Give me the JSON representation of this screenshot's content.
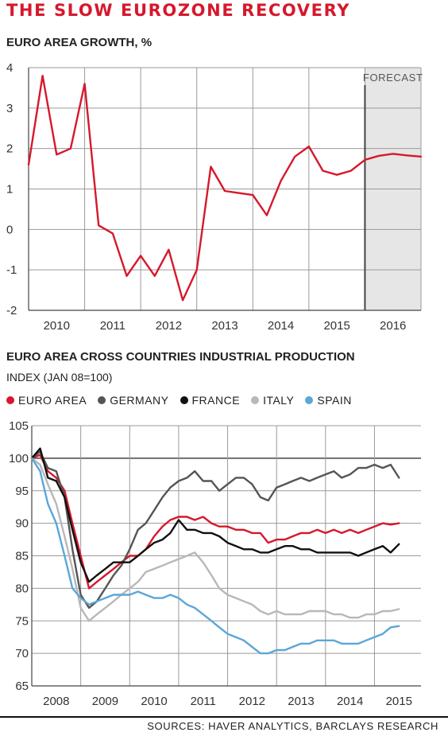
{
  "title": "THE SLOW EUROZONE RECOVERY",
  "source": "SOURCES: HAVER ANALYTICS, BARCLAYS RESEARCH",
  "chart_data": [
    {
      "type": "line",
      "title": "EURO AREA GROWTH, %",
      "xlabel": "",
      "ylabel": "",
      "xlim": [
        2009.5,
        2016.5
      ],
      "ylim": [
        -2,
        4
      ],
      "yticks": [
        4,
        3,
        2,
        1,
        0,
        -1,
        -2
      ],
      "xtick_labels": [
        "2010",
        "2011",
        "2012",
        "2013",
        "2014",
        "2015",
        "2016"
      ],
      "annotation": "FORECAST",
      "forecast_start": 2015.5,
      "grid": true,
      "series": [
        {
          "color": "#d6182c",
          "x": [
            2009.5,
            2009.75,
            2010.0,
            2010.25,
            2010.5,
            2010.75,
            2011.0,
            2011.25,
            2011.5,
            2011.75,
            2012.0,
            2012.25,
            2012.5,
            2012.75,
            2013.0,
            2013.25,
            2013.5,
            2013.75,
            2014.0,
            2014.25,
            2014.5,
            2014.75,
            2015.0,
            2015.25,
            2015.5,
            2015.75,
            2016.0,
            2016.25,
            2016.5
          ],
          "y": [
            1.6,
            3.8,
            1.85,
            2.0,
            3.6,
            0.1,
            -0.1,
            -1.15,
            -0.65,
            -1.15,
            -0.5,
            -1.75,
            -1.0,
            1.55,
            0.95,
            0.9,
            0.85,
            0.35,
            1.2,
            1.8,
            2.05,
            1.45,
            1.35,
            1.45,
            1.72,
            1.82,
            1.87,
            1.83,
            1.8
          ]
        }
      ]
    },
    {
      "type": "line",
      "title": "EURO AREA CROSS COUNTRIES INDUSTRIAL PRODUCTION",
      "subtitle": "INDEX (JAN 08=100)",
      "xlabel": "",
      "ylabel": "",
      "xlim": [
        2008.0,
        2015.95
      ],
      "ylim": [
        65,
        105
      ],
      "yticks": [
        105,
        100,
        95,
        90,
        85,
        80,
        75,
        70,
        65
      ],
      "xtick_labels": [
        "2008",
        "2009",
        "2010",
        "2011",
        "2012",
        "2013",
        "2014",
        "2015"
      ],
      "legend_position": "top-left",
      "grid": true,
      "series": [
        {
          "name": "EURO AREA",
          "color": "#d6182c",
          "x": [
            2008.0,
            2008.17,
            2008.33,
            2008.5,
            2008.67,
            2008.83,
            2009.0,
            2009.17,
            2009.33,
            2009.5,
            2009.67,
            2009.83,
            2010.0,
            2010.17,
            2010.33,
            2010.5,
            2010.67,
            2010.83,
            2011.0,
            2011.17,
            2011.33,
            2011.5,
            2011.67,
            2011.83,
            2012.0,
            2012.17,
            2012.33,
            2012.5,
            2012.67,
            2012.83,
            2013.0,
            2013.17,
            2013.33,
            2013.5,
            2013.67,
            2013.83,
            2014.0,
            2014.17,
            2014.33,
            2014.5,
            2014.67,
            2014.83,
            2015.0,
            2015.17,
            2015.33,
            2015.5
          ],
          "y": [
            100,
            100.5,
            98,
            97,
            95,
            90,
            85,
            80,
            81,
            82,
            83,
            84,
            85,
            85,
            86,
            88,
            89.5,
            90.5,
            91,
            91,
            90.5,
            91,
            90,
            89.5,
            89.5,
            89,
            89,
            88.5,
            88.5,
            87,
            87.5,
            87.5,
            88,
            88.5,
            88.5,
            89,
            88.5,
            89,
            88.5,
            89,
            88.5,
            89,
            89.5,
            90,
            89.8,
            90
          ]
        },
        {
          "name": "GERMANY",
          "color": "#555555",
          "x": [
            2008.0,
            2008.17,
            2008.33,
            2008.5,
            2008.67,
            2008.83,
            2009.0,
            2009.17,
            2009.33,
            2009.5,
            2009.67,
            2009.83,
            2010.0,
            2010.17,
            2010.33,
            2010.5,
            2010.67,
            2010.83,
            2011.0,
            2011.17,
            2011.33,
            2011.5,
            2011.67,
            2011.83,
            2012.0,
            2012.17,
            2012.33,
            2012.5,
            2012.67,
            2012.83,
            2013.0,
            2013.17,
            2013.33,
            2013.5,
            2013.67,
            2013.83,
            2014.0,
            2014.17,
            2014.33,
            2014.5,
            2014.67,
            2014.83,
            2015.0,
            2015.17,
            2015.33,
            2015.5
          ],
          "y": [
            100,
            101,
            98.5,
            98,
            94,
            86,
            79,
            77,
            78,
            80,
            82,
            83.5,
            86,
            89,
            90,
            92,
            94,
            95.5,
            96.5,
            97,
            98,
            96.5,
            96.5,
            95,
            96,
            97,
            97,
            96,
            94,
            93.5,
            95.5,
            96,
            96.5,
            97,
            96.5,
            97,
            97.5,
            98,
            97,
            97.5,
            98.5,
            98.5,
            99,
            98.5,
            99,
            97
          ]
        },
        {
          "name": "FRANCE",
          "color": "#111111",
          "x": [
            2008.0,
            2008.17,
            2008.33,
            2008.5,
            2008.67,
            2008.83,
            2009.0,
            2009.17,
            2009.33,
            2009.5,
            2009.67,
            2009.83,
            2010.0,
            2010.17,
            2010.33,
            2010.5,
            2010.67,
            2010.83,
            2011.0,
            2011.17,
            2011.33,
            2011.5,
            2011.67,
            2011.83,
            2012.0,
            2012.17,
            2012.33,
            2012.5,
            2012.67,
            2012.83,
            2013.0,
            2013.17,
            2013.33,
            2013.5,
            2013.67,
            2013.83,
            2014.0,
            2014.17,
            2014.33,
            2014.5,
            2014.67,
            2014.83,
            2015.0,
            2015.17,
            2015.33,
            2015.5
          ],
          "y": [
            100,
            101.5,
            97,
            96.5,
            94,
            89,
            84,
            81,
            82,
            83,
            84,
            84,
            84,
            85,
            86,
            87,
            87.5,
            88.5,
            90.5,
            89,
            89,
            88.5,
            88.5,
            88,
            87,
            86.5,
            86,
            86,
            85.5,
            85.5,
            86,
            86.5,
            86.5,
            86,
            86,
            85.5,
            85.5,
            85.5,
            85.5,
            85.5,
            85,
            85.5,
            86,
            86.5,
            85.5,
            86.8
          ]
        },
        {
          "name": "ITALY",
          "color": "#b8b8b8",
          "x": [
            2008.0,
            2008.17,
            2008.33,
            2008.5,
            2008.67,
            2008.83,
            2009.0,
            2009.17,
            2009.33,
            2009.5,
            2009.67,
            2009.83,
            2010.0,
            2010.17,
            2010.33,
            2010.5,
            2010.67,
            2010.83,
            2011.0,
            2011.17,
            2011.33,
            2011.5,
            2011.67,
            2011.83,
            2012.0,
            2012.17,
            2012.33,
            2012.5,
            2012.67,
            2012.83,
            2013.0,
            2013.17,
            2013.33,
            2013.5,
            2013.67,
            2013.83,
            2014.0,
            2014.17,
            2014.33,
            2014.5,
            2014.67,
            2014.83,
            2015.0,
            2015.17,
            2015.33,
            2015.5
          ],
          "y": [
            100,
            99,
            96,
            93,
            88,
            83,
            77,
            75,
            76,
            77,
            78,
            79,
            80,
            81,
            82.5,
            83,
            83.5,
            84,
            84.5,
            85,
            85.5,
            84,
            82,
            80,
            79,
            78.5,
            78,
            77.5,
            76.5,
            76,
            76.5,
            76,
            76,
            76,
            76.5,
            76.5,
            76.5,
            76,
            76,
            75.5,
            75.5,
            76,
            76,
            76.5,
            76.5,
            76.8
          ]
        },
        {
          "name": "SPAIN",
          "color": "#5aa7d8",
          "x": [
            2008.0,
            2008.17,
            2008.33,
            2008.5,
            2008.67,
            2008.83,
            2009.0,
            2009.17,
            2009.33,
            2009.5,
            2009.67,
            2009.83,
            2010.0,
            2010.17,
            2010.33,
            2010.5,
            2010.67,
            2010.83,
            2011.0,
            2011.17,
            2011.33,
            2011.5,
            2011.67,
            2011.83,
            2012.0,
            2012.17,
            2012.33,
            2012.5,
            2012.67,
            2012.83,
            2013.0,
            2013.17,
            2013.33,
            2013.5,
            2013.67,
            2013.83,
            2014.0,
            2014.17,
            2014.33,
            2014.5,
            2014.67,
            2014.83,
            2015.0,
            2015.17,
            2015.33,
            2015.5
          ],
          "y": [
            100,
            98,
            93,
            90,
            85,
            80,
            78.5,
            77.5,
            78,
            78.5,
            79,
            79,
            79,
            79.5,
            79,
            78.5,
            78.5,
            79,
            78.5,
            77.5,
            77,
            76,
            75,
            74,
            73,
            72.5,
            72,
            71,
            70,
            70,
            70.5,
            70.5,
            71,
            71.5,
            71.5,
            72,
            72,
            72,
            71.5,
            71.5,
            71.5,
            72,
            72.5,
            73,
            74,
            74.2
          ]
        }
      ]
    }
  ]
}
